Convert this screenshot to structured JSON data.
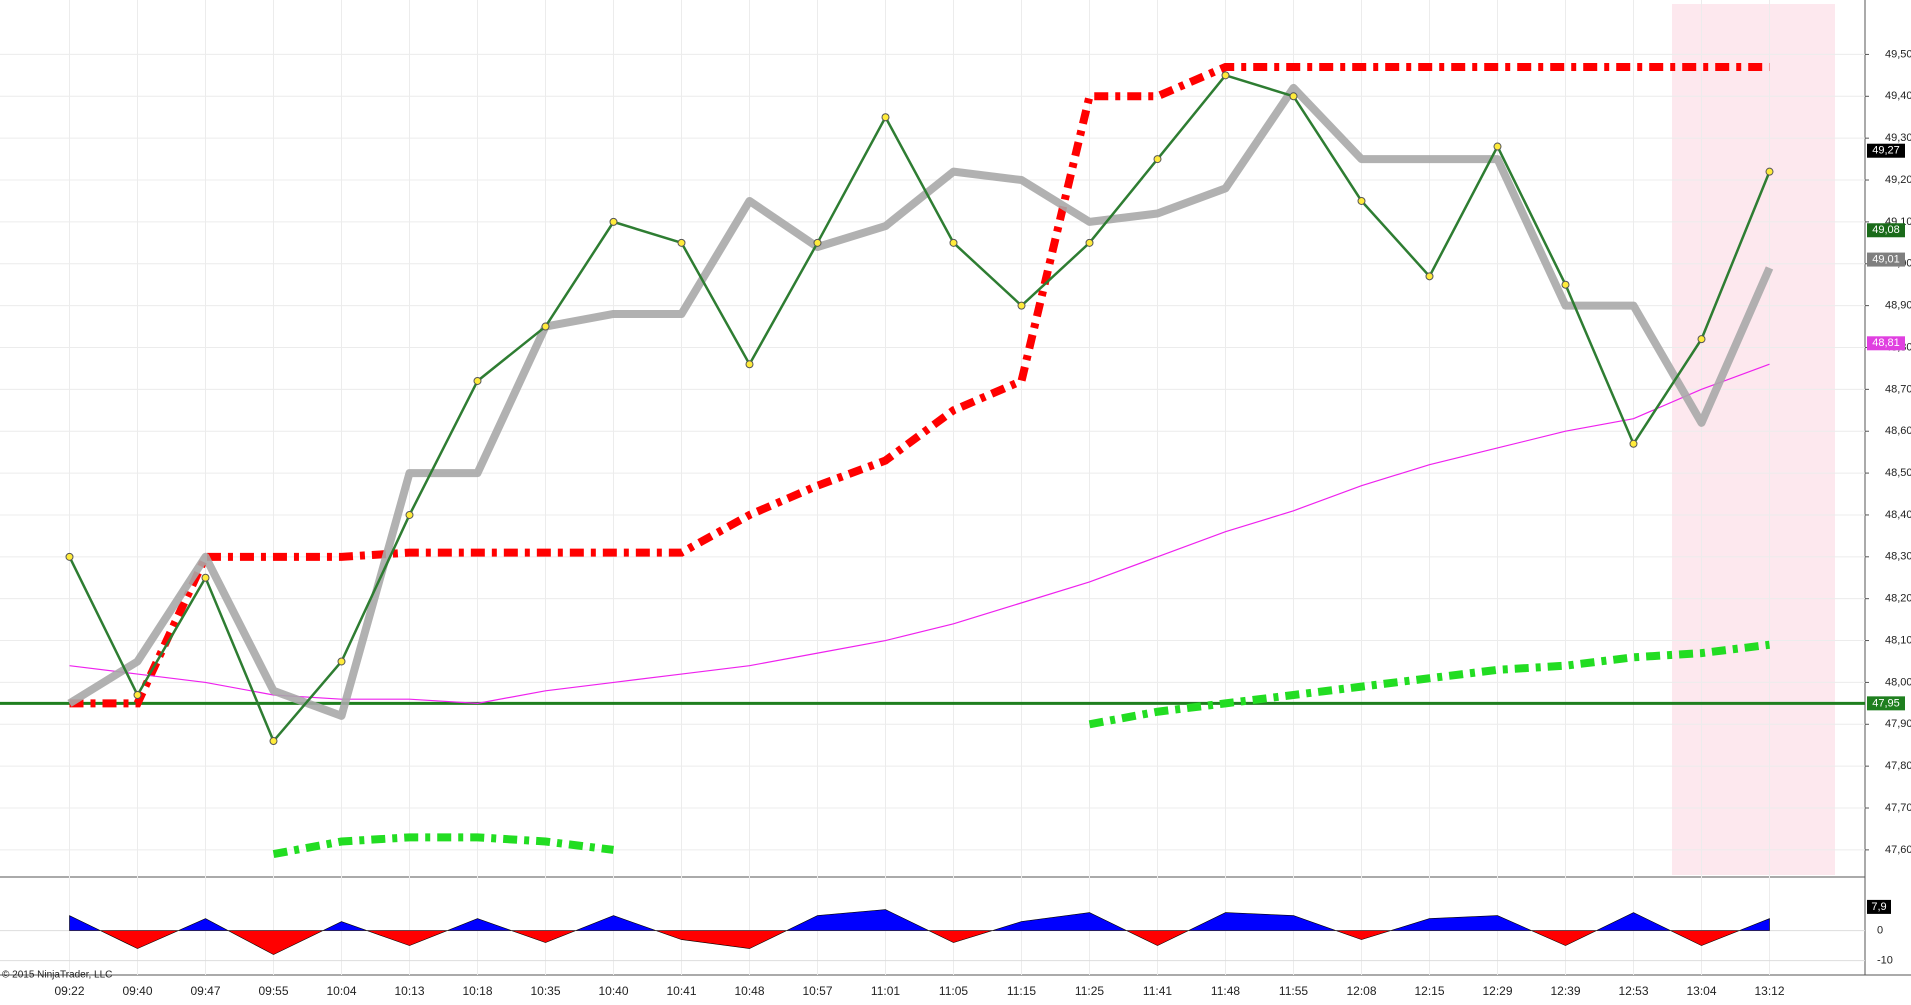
{
  "chart_data": [
    {
      "type": "line",
      "categories": [
        "09:22",
        "09:40",
        "09:47",
        "09:55",
        "10:04",
        "10:13",
        "10:18",
        "10:35",
        "10:40",
        "10:41",
        "10:48",
        "10:57",
        "11:01",
        "11:05",
        "11:15",
        "11:25",
        "11:41",
        "11:48",
        "11:55",
        "12:08",
        "12:15",
        "12:29",
        "12:39",
        "12:53",
        "13:04",
        "13:12"
      ],
      "ylim": [
        47.54,
        49.63
      ],
      "yticks": [
        {
          "value": 47.6,
          "label": "47,60"
        },
        {
          "value": 47.7,
          "label": "47,70"
        },
        {
          "value": 47.8,
          "label": "47,80"
        },
        {
          "value": 47.9,
          "label": "47,90"
        },
        {
          "value": 48.0,
          "label": "48,00"
        },
        {
          "value": 48.1,
          "label": "48,10"
        },
        {
          "value": 48.2,
          "label": "48,20"
        },
        {
          "value": 48.3,
          "label": "48,30"
        },
        {
          "value": 48.4,
          "label": "48,40"
        },
        {
          "value": 48.5,
          "label": "48,50"
        },
        {
          "value": 48.6,
          "label": "48,60"
        },
        {
          "value": 48.7,
          "label": "48,70"
        },
        {
          "value": 48.8,
          "label": "48,80"
        },
        {
          "value": 48.9,
          "label": "48,90"
        },
        {
          "value": 49.0,
          "label": "49,00"
        },
        {
          "value": 49.1,
          "label": "49,10"
        },
        {
          "value": 49.2,
          "label": "49,20"
        },
        {
          "value": 49.3,
          "label": "49,30"
        },
        {
          "value": 49.4,
          "label": "49,40"
        },
        {
          "value": 49.5,
          "label": "49,50"
        }
      ],
      "grid": true,
      "series": [
        {
          "style": "dotted",
          "color": "#ff0000",
          "values": [
            47.95,
            47.95,
            48.3,
            48.3,
            48.3,
            48.31,
            48.31,
            48.31,
            48.31,
            48.31,
            48.4,
            48.47,
            48.53,
            48.65,
            48.72,
            49.4,
            49.4,
            49.47,
            49.47,
            49.47,
            49.47,
            49.47,
            49.47,
            49.47,
            49.47,
            49.47
          ]
        },
        {
          "style": "dotted",
          "color": "#22dd22",
          "values": [
            null,
            null,
            null,
            47.59,
            47.62,
            47.63,
            47.63,
            47.62,
            47.6,
            null,
            null,
            null,
            null,
            null,
            null,
            47.9,
            47.93,
            47.95,
            47.97,
            47.99,
            48.01,
            48.03,
            48.04,
            48.06,
            48.07,
            48.09
          ]
        },
        {
          "style": "thin",
          "color": "#ee22ee",
          "values": [
            48.04,
            48.02,
            48.0,
            47.97,
            47.96,
            47.96,
            47.95,
            47.98,
            48.0,
            48.02,
            48.04,
            48.07,
            48.1,
            48.14,
            48.19,
            48.24,
            48.3,
            48.36,
            48.41,
            48.47,
            48.52,
            48.56,
            48.6,
            48.63,
            48.7,
            48.76
          ]
        },
        {
          "style": "thick",
          "color": "#a9a9a9",
          "values": [
            47.95,
            48.05,
            48.3,
            47.98,
            47.92,
            48.5,
            48.5,
            48.85,
            48.88,
            48.88,
            49.15,
            49.04,
            49.09,
            49.22,
            49.2,
            49.1,
            49.12,
            49.18,
            49.42,
            49.25,
            49.25,
            49.25,
            48.9,
            48.9,
            48.62,
            48.99
          ]
        },
        {
          "style": "price",
          "color": "#2e7d32",
          "values": [
            48.3,
            47.97,
            48.25,
            47.86,
            48.05,
            48.4,
            48.72,
            48.85,
            49.1,
            49.05,
            48.76,
            49.05,
            49.35,
            49.05,
            48.9,
            49.05,
            49.25,
            49.45,
            49.4,
            49.15,
            48.97,
            49.28,
            48.95,
            48.57,
            48.82,
            49.22
          ]
        }
      ],
      "markers": [
        {
          "value": 49.27,
          "label": "49,27",
          "color": "#000000"
        },
        {
          "value": 49.08,
          "label": "49,08",
          "color": "#1a6b1a"
        },
        {
          "value": 49.01,
          "label": "49,01",
          "color": "#7f7f7f"
        },
        {
          "value": 48.81,
          "label": "48,81",
          "color": "#e040e0"
        },
        {
          "value": 47.95,
          "label": "47,95",
          "color": "#1f7f1f"
        }
      ]
    },
    {
      "type": "area",
      "ylim": [
        -14.8,
        17.2
      ],
      "yticks": [
        0,
        {
          "value": -10,
          "label": "-10"
        }
      ],
      "values": [
        5,
        -6,
        4,
        -8,
        3,
        -5,
        4,
        -4,
        5,
        -3,
        -6,
        5,
        7,
        -4,
        3,
        6,
        -5,
        6,
        5,
        -3,
        4,
        5,
        -5,
        6,
        -5,
        4
      ],
      "pos_color": "#0000ff",
      "neg_color": "#ff0000",
      "marker": {
        "value": 7.9,
        "label": "7,9"
      }
    }
  ],
  "footer": "© 2015 NinjaTrader, LLC"
}
